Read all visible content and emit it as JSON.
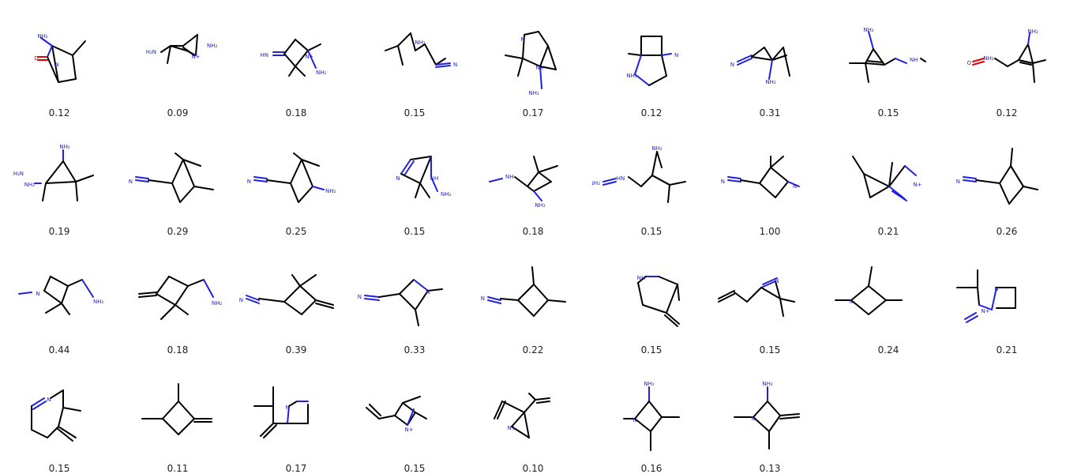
{
  "molecules": [
    {
      "score": "0.12",
      "labels": [
        "NH₂",
        "O",
        "N"
      ]
    },
    {
      "score": "0.09",
      "labels": [
        "H₂N",
        "N+",
        "NH₂"
      ]
    },
    {
      "score": "0.18",
      "labels": [
        "HN",
        "N+",
        "NH₂"
      ]
    },
    {
      "score": "0.15",
      "labels": [
        "NH₂",
        "N"
      ]
    },
    {
      "score": "0.17",
      "labels": [
        "N",
        "N+",
        "NH₂"
      ]
    },
    {
      "score": "0.12",
      "labels": [
        "NH₂",
        "N"
      ]
    },
    {
      "score": "0.31",
      "labels": [
        "N",
        "NH₂"
      ]
    },
    {
      "score": "0.15",
      "labels": [
        "NH₂",
        "NH"
      ]
    },
    {
      "score": "0.12",
      "labels": [
        "O",
        "NH₂",
        "NH₂"
      ]
    },
    {
      "score": "0.19",
      "labels": [
        "NH₂",
        "H₂N",
        "NH₂"
      ]
    },
    {
      "score": "0.29",
      "labels": [
        "N"
      ]
    },
    {
      "score": "0.25",
      "labels": [
        "N",
        "NH₂"
      ]
    },
    {
      "score": "0.15",
      "labels": [
        "N",
        "NH",
        "NH₂"
      ]
    },
    {
      "score": "0.18",
      "labels": [
        "NH",
        "NH₂"
      ]
    },
    {
      "score": "0.15",
      "labels": [
        "NH₂",
        "HN",
        "NH₂"
      ]
    },
    {
      "score": "1.00",
      "labels": [
        "N",
        "N"
      ]
    },
    {
      "score": "0.21",
      "labels": [
        "N+"
      ]
    },
    {
      "score": "0.26",
      "labels": [
        "N"
      ]
    },
    {
      "score": "0.44",
      "labels": [
        "N",
        "NH₂"
      ]
    },
    {
      "score": "0.18",
      "labels": [
        "NH₂"
      ]
    },
    {
      "score": "0.39",
      "labels": [
        "N"
      ]
    },
    {
      "score": "0.33",
      "labels": [
        "N",
        "N"
      ]
    },
    {
      "score": "0.22",
      "labels": [
        "N"
      ]
    },
    {
      "score": "0.15",
      "labels": [
        "NH"
      ]
    },
    {
      "score": "0.15",
      "labels": [
        "N"
      ]
    },
    {
      "score": "0.24",
      "labels": [
        "N"
      ]
    },
    {
      "score": "0.21",
      "labels": [
        "N",
        "N+"
      ]
    },
    {
      "score": "0.15",
      "labels": [
        "N"
      ]
    },
    {
      "score": "0.11",
      "labels": []
    },
    {
      "score": "0.17",
      "labels": [
        "N"
      ]
    },
    {
      "score": "0.15",
      "labels": [
        "N+"
      ]
    },
    {
      "score": "0.10",
      "labels": [
        "N+"
      ]
    },
    {
      "score": "0.16",
      "labels": [
        "NH₂",
        "N"
      ]
    },
    {
      "score": "0.13",
      "labels": [
        "NH₂",
        "N"
      ]
    }
  ]
}
